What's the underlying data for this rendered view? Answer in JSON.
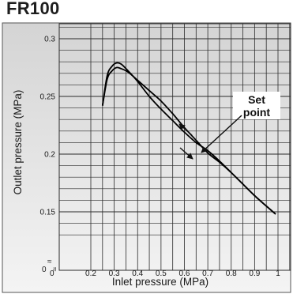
{
  "chart_data": {
    "type": "line",
    "title": "FR100",
    "xlabel": "Inlet pressure (MPa)",
    "ylabel": "Outlet pressure (MPa)",
    "xlim": [
      0.2,
      1.05
    ],
    "ylim": [
      0.13,
      0.305
    ],
    "axis_break": "≈",
    "x_origin_label": "0",
    "y_origin_label": "0",
    "x_ticks": [
      {
        "v": 0.2,
        "label": "0.2"
      },
      {
        "v": 0.3,
        "label": "0.3"
      },
      {
        "v": 0.4,
        "label": "0.4"
      },
      {
        "v": 0.5,
        "label": "0.5"
      },
      {
        "v": 0.6,
        "label": "0.6"
      },
      {
        "v": 0.7,
        "label": "0.7"
      },
      {
        "v": 0.8,
        "label": "0.8"
      },
      {
        "v": 0.9,
        "label": "0.9"
      },
      {
        "v": 1.0,
        "label": "1"
      }
    ],
    "y_ticks": [
      {
        "v": 0.15,
        "label": "0.15"
      },
      {
        "v": 0.2,
        "label": "0.2"
      },
      {
        "v": 0.25,
        "label": "0.25"
      },
      {
        "v": 0.3,
        "label": "0.3"
      }
    ],
    "grid": true,
    "series": [
      {
        "name": "",
        "x": [
          0.25,
          0.27,
          0.29,
          0.31,
          0.33,
          0.36,
          0.4,
          0.45,
          0.5,
          0.55,
          0.6,
          0.65,
          0.7,
          0.75,
          0.8,
          0.85,
          0.9,
          0.95,
          0.99
        ],
        "y": [
          0.242,
          0.268,
          0.276,
          0.279,
          0.278,
          0.272,
          0.263,
          0.25,
          0.239,
          0.229,
          0.219,
          0.21,
          0.203,
          0.194,
          0.184,
          0.174,
          0.164,
          0.155,
          0.148
        ]
      },
      {
        "name": "",
        "x": [
          0.25,
          0.27,
          0.29,
          0.31,
          0.33,
          0.36,
          0.4,
          0.45,
          0.5,
          0.55,
          0.6,
          0.65,
          0.7,
          0.75,
          0.8,
          0.85,
          0.9,
          0.95,
          0.99
        ],
        "y": [
          0.242,
          0.265,
          0.272,
          0.275,
          0.274,
          0.271,
          0.264,
          0.255,
          0.246,
          0.235,
          0.223,
          0.212,
          0.201,
          0.193,
          0.184,
          0.174,
          0.164,
          0.155,
          0.148
        ]
      }
    ],
    "annotations": [
      {
        "text": "Set point",
        "x": 0.7,
        "y": 0.201
      }
    ]
  }
}
